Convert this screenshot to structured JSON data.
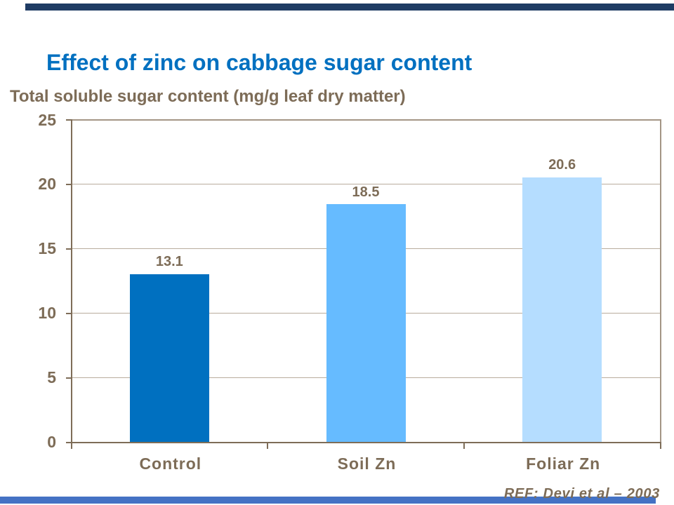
{
  "slide": {
    "title": "Effect of zinc on cabbage sugar content",
    "reference": "REF: Devi et al – 2003",
    "colors": {
      "title_blue": "#0070C0",
      "text_brown": "#7D6C57",
      "axis_brown": "#7E6D58",
      "border_brown": "#A49585",
      "gridline_brown": "#B9AC9D",
      "top_accent_navy": "#1F3C64",
      "bottom_accent_blue": "#4472C4",
      "background": "#FFFFFF"
    }
  },
  "chart_data": {
    "type": "bar",
    "title": "Effect of zinc on cabbage sugar content",
    "ylabel": "Total soluble sugar content (mg/g leaf dry matter)",
    "xlabel": "",
    "categories": [
      "Control",
      "Soil Zn",
      "Foliar Zn"
    ],
    "values": [
      13.1,
      18.5,
      20.6
    ],
    "value_labels": [
      "13.1",
      "18.5",
      "20.6"
    ],
    "bar_colors": [
      "#0070C0",
      "#66BBFF",
      "#B5DDFF"
    ],
    "ylim": [
      0,
      25
    ],
    "yticks": [
      0,
      5,
      10,
      15,
      20,
      25
    ],
    "ytick_labels": [
      "0",
      "5",
      "10",
      "15",
      "20",
      "25"
    ],
    "grid": true,
    "legend": false,
    "source_note": "REF: Devi et al – 2003"
  }
}
